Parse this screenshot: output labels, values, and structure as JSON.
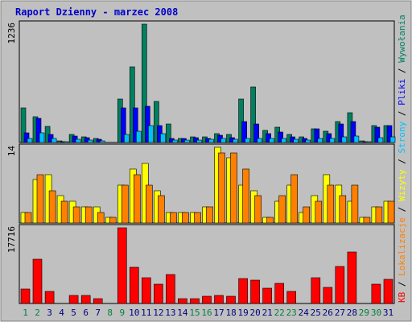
{
  "title": "Raport Dzienny -  marzec 2008",
  "colors": {
    "background": "#c0c0c0",
    "frame": "#ffffff",
    "border": "#808080",
    "title": "#0000cc",
    "weekday": "#000080",
    "weekend": "#008040"
  },
  "legend_right": [
    {
      "label": "Wywołania",
      "color": "#008060"
    },
    {
      "sep": " / ",
      "label": "Pliki",
      "color": "#0000ff"
    },
    {
      "sep": " / ",
      "label": "Strony",
      "color": "#00c0ff"
    },
    {
      "sep": " / ",
      "label": "Wizyty",
      "color": "#ffff00"
    },
    {
      "sep": " / ",
      "label": "Lokalizacje",
      "color": "#ff8000"
    },
    {
      "sep": "",
      "label": "KB",
      "color": "#ff0000"
    }
  ],
  "chart_data": {
    "type": "bar",
    "categories": [
      "1",
      "2",
      "3",
      "4",
      "5",
      "6",
      "7",
      "8",
      "9",
      "10",
      "11",
      "12",
      "13",
      "14",
      "15",
      "16",
      "17",
      "18",
      "19",
      "20",
      "21",
      "22",
      "23",
      "24",
      "25",
      "26",
      "27",
      "28",
      "29",
      "30",
      "31"
    ],
    "weekend_days": [
      "1",
      "2",
      "8",
      "9",
      "15",
      "16",
      "22",
      "23",
      "29",
      "30"
    ],
    "panels": [
      {
        "name": "hits",
        "ymax_label": "1236",
        "ymax": 1236,
        "series": [
          {
            "name": "Wywołania",
            "color": "#008060",
            "values": [
              360,
              270,
              170,
              15,
              80,
              55,
              45,
              0,
              450,
              790,
              1236,
              430,
              190,
              45,
              55,
              60,
              95,
              80,
              450,
              580,
              130,
              160,
              80,
              60,
              140,
              115,
              220,
              310,
              15,
              180,
              180
            ]
          },
          {
            "name": "Pliki",
            "color": "#0000ff",
            "values": [
              100,
              250,
              85,
              10,
              70,
              50,
              35,
              0,
              360,
              360,
              380,
              180,
              45,
              40,
              50,
              45,
              75,
              50,
              220,
              190,
              90,
              110,
              60,
              40,
              140,
              90,
              190,
              220,
              10,
              160,
              180
            ]
          },
          {
            "name": "Strony",
            "color": "#00c0ff",
            "values": [
              45,
              100,
              45,
              5,
              35,
              25,
              20,
              0,
              80,
              120,
              180,
              90,
              25,
              25,
              25,
              30,
              40,
              35,
              40,
              40,
              45,
              45,
              30,
              25,
              45,
              45,
              60,
              65,
              5,
              50,
              55
            ]
          }
        ]
      },
      {
        "name": "visits",
        "ymax_label": "14",
        "ymax": 14,
        "series": [
          {
            "name": "Wizyty",
            "color": "#ffff00",
            "values": [
              2,
              8,
              9,
              5,
              4,
              3,
              3,
              1,
              7,
              10,
              11,
              6,
              2,
              2,
              2,
              3,
              14,
              12,
              7,
              6,
              1,
              4,
              7,
              2,
              5,
              9,
              7,
              4,
              1,
              3,
              4
            ]
          },
          {
            "name": "Lokalizacje",
            "color": "#ff8000",
            "values": [
              2,
              9,
              6,
              4,
              3,
              3,
              2,
              1,
              7,
              9,
              7,
              5,
              2,
              2,
              2,
              3,
              13,
              13,
              10,
              5,
              1,
              5,
              9,
              3,
              4,
              7,
              5,
              7,
              1,
              3,
              4
            ]
          }
        ]
      },
      {
        "name": "kb",
        "ymax_label": "17716",
        "ymax": 17716,
        "series": [
          {
            "name": "KB",
            "color": "#ff0000",
            "values": [
              3400,
              10400,
              2900,
              0,
              1900,
              1900,
              1100,
              0,
              17716,
              8500,
              6000,
              4600,
              6700,
              1100,
              1100,
              1700,
              1800,
              1700,
              5900,
              5500,
              3500,
              4800,
              2900,
              0,
              6000,
              3800,
              8700,
              12000,
              0,
              4600,
              5600
            ]
          }
        ]
      }
    ]
  }
}
